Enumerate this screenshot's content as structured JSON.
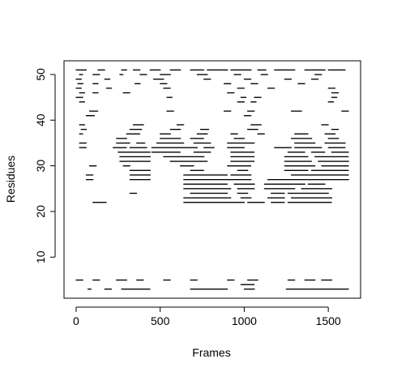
{
  "chart_data": {
    "type": "scatter",
    "title": "",
    "xlabel": "Frames",
    "ylabel": "Residues",
    "xlim": [
      -72,
      1692
    ],
    "ylim": [
      1,
      53
    ],
    "xticks": [
      0,
      500,
      1000,
      1500
    ],
    "yticks": [
      10,
      20,
      30,
      40,
      50
    ],
    "grid": false,
    "legend": "none",
    "color": "#000000",
    "series": [
      {
        "note_style": "dense horizontal runs of single-residue contacts",
        "runs": [
          {
            "y": 51,
            "x": [
              [
                0,
                60
              ],
              [
                130,
                170
              ],
              [
                270,
                300
              ],
              [
                340,
                380
              ],
              [
                440,
                500
              ],
              [
                560,
                620
              ],
              [
                680,
                760
              ],
              [
                780,
                900
              ],
              [
                920,
                1040
              ],
              [
                1080,
                1130
              ],
              [
                1180,
                1300
              ],
              [
                1360,
                1480
              ],
              [
                1500,
                1600
              ]
            ]
          },
          {
            "y": 50,
            "x": [
              [
                20,
                40
              ],
              [
                100,
                140
              ],
              [
                260,
                280
              ],
              [
                380,
                420
              ],
              [
                500,
                560
              ],
              [
                720,
                780
              ],
              [
                940,
                980
              ],
              [
                1100,
                1140
              ],
              [
                1420,
                1460
              ]
            ]
          },
          {
            "y": 49,
            "x": [
              [
                0,
                30
              ],
              [
                170,
                200
              ],
              [
                460,
                520
              ],
              [
                760,
                800
              ],
              [
                1000,
                1040
              ],
              [
                1240,
                1280
              ],
              [
                1400,
                1440
              ]
            ]
          },
          {
            "y": 48,
            "x": [
              [
                10,
                40
              ],
              [
                100,
                130
              ],
              [
                350,
                380
              ],
              [
                500,
                540
              ],
              [
                880,
                920
              ],
              [
                1040,
                1080
              ],
              [
                1320,
                1360
              ]
            ]
          },
          {
            "y": 47,
            "x": [
              [
                0,
                30
              ],
              [
                180,
                210
              ],
              [
                520,
                560
              ],
              [
                960,
                1000
              ],
              [
                1140,
                1180
              ],
              [
                1500,
                1540
              ]
            ]
          },
          {
            "y": 46,
            "x": [
              [
                20,
                50
              ],
              [
                100,
                130
              ],
              [
                280,
                320
              ],
              [
                900,
                940
              ],
              [
                1520,
                1560
              ]
            ]
          },
          {
            "y": 45,
            "x": [
              [
                0,
                40
              ],
              [
                540,
                570
              ],
              [
                980,
                1010
              ],
              [
                1060,
                1100
              ],
              [
                1520,
                1550
              ]
            ]
          },
          {
            "y": 44,
            "x": [
              [
                20,
                50
              ],
              [
                960,
                1000
              ],
              [
                1040,
                1070
              ],
              [
                1500,
                1530
              ]
            ]
          },
          {
            "y": 42,
            "x": [
              [
                80,
                130
              ],
              [
                540,
                580
              ],
              [
                880,
                920
              ],
              [
                1020,
                1060
              ],
              [
                1280,
                1340
              ],
              [
                1580,
                1620
              ]
            ]
          },
          {
            "y": 41,
            "x": [
              [
                60,
                110
              ],
              [
                1000,
                1040
              ]
            ]
          },
          {
            "y": 39,
            "x": [
              [
                20,
                50
              ],
              [
                340,
                400
              ],
              [
                600,
                640
              ],
              [
                1040,
                1100
              ],
              [
                1460,
                1500
              ]
            ]
          },
          {
            "y": 38,
            "x": [
              [
                30,
                60
              ],
              [
                320,
                390
              ],
              [
                560,
                620
              ],
              [
                740,
                790
              ],
              [
                1020,
                1080
              ],
              [
                1520,
                1560
              ]
            ]
          },
          {
            "y": 37,
            "x": [
              [
                20,
                40
              ],
              [
                300,
                380
              ],
              [
                500,
                560
              ],
              [
                720,
                780
              ],
              [
                920,
                960
              ],
              [
                1080,
                1120
              ],
              [
                1300,
                1380
              ],
              [
                1480,
                1540
              ]
            ]
          },
          {
            "y": 36,
            "x": [
              [
                240,
                300
              ],
              [
                500,
                620
              ],
              [
                680,
                760
              ],
              [
                940,
                1000
              ],
              [
                1280,
                1400
              ],
              [
                1500,
                1560
              ]
            ]
          },
          {
            "y": 35,
            "x": [
              [
                20,
                60
              ],
              [
                240,
                320
              ],
              [
                360,
                410
              ],
              [
                480,
                640
              ],
              [
                700,
                800
              ],
              [
                900,
                1060
              ],
              [
                1300,
                1420
              ],
              [
                1480,
                1600
              ]
            ]
          },
          {
            "y": 34,
            "x": [
              [
                20,
                60
              ],
              [
                220,
                300
              ],
              [
                320,
                420
              ],
              [
                450,
                720
              ],
              [
                760,
                820
              ],
              [
                900,
                1000
              ],
              [
                1180,
                1280
              ],
              [
                1300,
                1460
              ],
              [
                1500,
                1600
              ]
            ]
          },
          {
            "y": 33,
            "x": [
              [
                250,
                440
              ],
              [
                450,
                620
              ],
              [
                700,
                800
              ],
              [
                920,
                1060
              ],
              [
                1260,
                1360
              ],
              [
                1400,
                1480
              ],
              [
                1520,
                1620
              ]
            ]
          },
          {
            "y": 32,
            "x": [
              [
                260,
                440
              ],
              [
                520,
                760
              ],
              [
                920,
                1060
              ],
              [
                1240,
                1380
              ],
              [
                1420,
                1620
              ]
            ]
          },
          {
            "y": 31,
            "x": [
              [
                260,
                440
              ],
              [
                560,
                780
              ],
              [
                920,
                1060
              ],
              [
                1240,
                1400
              ],
              [
                1440,
                1620
              ]
            ]
          },
          {
            "y": 30,
            "x": [
              [
                80,
                120
              ],
              [
                280,
                320
              ],
              [
                620,
                700
              ],
              [
                900,
                1040
              ],
              [
                1240,
                1420
              ],
              [
                1460,
                1620
              ]
            ]
          },
          {
            "y": 29,
            "x": [
              [
                320,
                440
              ],
              [
                680,
                760
              ],
              [
                960,
                1020
              ],
              [
                1240,
                1380
              ],
              [
                1400,
                1620
              ]
            ]
          },
          {
            "y": 28,
            "x": [
              [
                60,
                100
              ],
              [
                320,
                440
              ],
              [
                640,
                900
              ],
              [
                920,
                1040
              ],
              [
                1280,
                1620
              ]
            ]
          },
          {
            "y": 27,
            "x": [
              [
                60,
                100
              ],
              [
                320,
                440
              ],
              [
                640,
                920
              ],
              [
                920,
                1040
              ],
              [
                1140,
                1620
              ]
            ]
          },
          {
            "y": 26,
            "x": [
              [
                640,
                900
              ],
              [
                940,
                1060
              ],
              [
                1120,
                1360
              ],
              [
                1380,
                1480
              ]
            ]
          },
          {
            "y": 25,
            "x": [
              [
                640,
                920
              ],
              [
                960,
                1060
              ],
              [
                1120,
                1300
              ],
              [
                1340,
                1520
              ]
            ]
          },
          {
            "y": 24,
            "x": [
              [
                320,
                360
              ],
              [
                680,
                900
              ],
              [
                960,
                1020
              ],
              [
                1160,
                1240
              ],
              [
                1260,
                1500
              ]
            ]
          },
          {
            "y": 23,
            "x": [
              [
                640,
                920
              ],
              [
                980,
                1040
              ],
              [
                1140,
                1240
              ],
              [
                1280,
                1520
              ]
            ]
          },
          {
            "y": 22,
            "x": [
              [
                100,
                180
              ],
              [
                640,
                1000
              ],
              [
                1020,
                1120
              ],
              [
                1160,
                1240
              ],
              [
                1260,
                1520
              ]
            ]
          },
          {
            "y": 5,
            "x": [
              [
                0,
                40
              ],
              [
                100,
                140
              ],
              [
                240,
                300
              ],
              [
                360,
                400
              ],
              [
                520,
                560
              ],
              [
                680,
                720
              ],
              [
                900,
                940
              ],
              [
                1020,
                1080
              ],
              [
                1260,
                1300
              ],
              [
                1360,
                1420
              ],
              [
                1460,
                1520
              ]
            ]
          },
          {
            "y": 4,
            "x": [
              [
                980,
                1060
              ]
            ]
          },
          {
            "y": 3,
            "x": [
              [
                70,
                90
              ],
              [
                170,
                210
              ],
              [
                270,
                440
              ],
              [
                680,
                900
              ],
              [
                1000,
                1060
              ],
              [
                1250,
                1620
              ]
            ]
          }
        ]
      }
    ]
  }
}
